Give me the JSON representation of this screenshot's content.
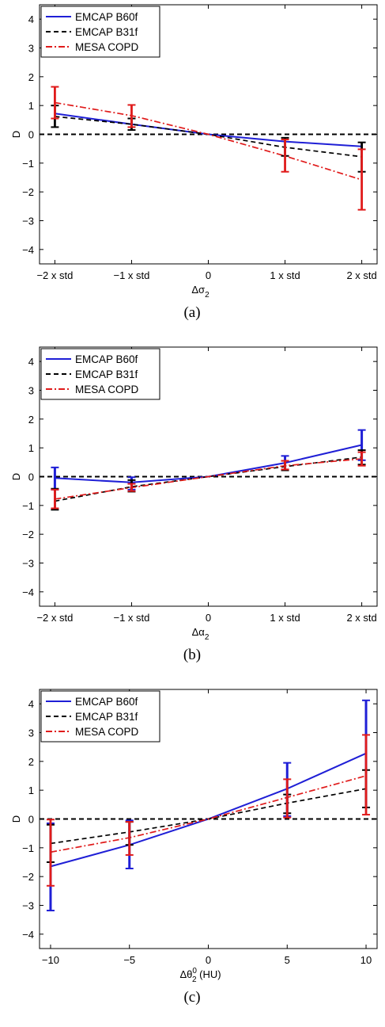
{
  "colors": {
    "b60f": "#1f1fd6",
    "b31f": "#000000",
    "mesa": "#e01b1b"
  },
  "chart_data": [
    {
      "type": "line",
      "caption": "(a)",
      "xlabel": "Δσ",
      "xlabel_sub": "2",
      "xlabel_sup": "",
      "xlabel_suffix": "",
      "ylabel": "D",
      "ylim": [
        -4.5,
        4.5
      ],
      "yticks": [
        -4,
        -3,
        -2,
        -1,
        0,
        1,
        2,
        3,
        4
      ],
      "x": [
        -2,
        -1,
        0,
        1,
        2
      ],
      "xlim": [
        -2.2,
        2.2
      ],
      "xticks": [
        -2,
        -1,
        0,
        1,
        2
      ],
      "xticklabels": [
        "−2 x std",
        "−1 x std",
        "0",
        "1 x std",
        "2 x std"
      ],
      "legend": "top-left",
      "series": [
        {
          "name": "EMCAP B60f",
          "style": "solid",
          "color": "#1f1fd6",
          "values": [
            0.72,
            0.35,
            0,
            -0.25,
            -0.42
          ],
          "errors": [
            null,
            null,
            null,
            null,
            null
          ]
        },
        {
          "name": "EMCAP B31f",
          "style": "dashed",
          "color": "#000000",
          "values": [
            0.62,
            0.35,
            0,
            -0.45,
            -0.78
          ],
          "errors": [
            [
              0.25,
              1.0
            ],
            [
              0.15,
              0.55
            ],
            null,
            [
              -0.75,
              -0.12
            ],
            [
              -1.3,
              -0.28
            ]
          ]
        },
        {
          "name": "MESA COPD",
          "style": "dashdot",
          "color": "#e01b1b",
          "values": [
            1.1,
            0.65,
            0,
            -0.75,
            -1.58
          ],
          "errors": [
            [
              0.55,
              1.65
            ],
            [
              0.25,
              1.02
            ],
            null,
            [
              -1.3,
              -0.18
            ],
            [
              -2.62,
              -0.52
            ]
          ]
        }
      ]
    },
    {
      "type": "line",
      "caption": "(b)",
      "xlabel": "Δα",
      "xlabel_sub": "2",
      "xlabel_sup": "",
      "xlabel_suffix": "",
      "ylabel": "D",
      "ylim": [
        -4.5,
        4.5
      ],
      "yticks": [
        -4,
        -3,
        -2,
        -1,
        0,
        1,
        2,
        3,
        4
      ],
      "x": [
        -2,
        -1,
        0,
        1,
        2
      ],
      "xlim": [
        -2.2,
        2.2
      ],
      "xticks": [
        -2,
        -1,
        0,
        1,
        2
      ],
      "xticklabels": [
        "−2 x std",
        "−1 x std",
        "0",
        "1 x std",
        "2 x std"
      ],
      "legend": "top-left",
      "series": [
        {
          "name": "EMCAP B60f",
          "style": "solid",
          "color": "#1f1fd6",
          "values": [
            -0.05,
            -0.2,
            0,
            0.48,
            1.1
          ],
          "errors": [
            [
              -0.45,
              0.32
            ],
            [
              -0.45,
              -0.02
            ],
            null,
            [
              0.25,
              0.72
            ],
            [
              0.57,
              1.62
            ]
          ]
        },
        {
          "name": "EMCAP B31f",
          "style": "dashed",
          "color": "#000000",
          "values": [
            -0.85,
            -0.35,
            0,
            0.35,
            0.68
          ],
          "errors": [
            [
              -1.15,
              -0.42
            ],
            [
              -0.52,
              -0.12
            ],
            null,
            [
              0.22,
              0.55
            ],
            [
              0.42,
              0.92
            ]
          ]
        },
        {
          "name": "MESA COPD",
          "style": "dashdot",
          "color": "#e01b1b",
          "values": [
            -0.78,
            -0.38,
            0,
            0.38,
            0.62
          ],
          "errors": [
            [
              -1.1,
              -0.45
            ],
            [
              -0.5,
              -0.25
            ],
            null,
            [
              0.25,
              0.55
            ],
            [
              0.38,
              0.85
            ]
          ]
        }
      ]
    },
    {
      "type": "line",
      "caption": "(c)",
      "xlabel": "Δθ",
      "xlabel_sub": "2",
      "xlabel_sup": "0",
      "xlabel_suffix": " (HU)",
      "ylabel": "D",
      "ylim": [
        -4.5,
        4.5
      ],
      "yticks": [
        -4,
        -3,
        -2,
        -1,
        0,
        1,
        2,
        3,
        4
      ],
      "x": [
        -10,
        -5,
        0,
        5,
        10
      ],
      "xlim": [
        -10.7,
        10.7
      ],
      "xticks": [
        -10,
        -5,
        0,
        5,
        10
      ],
      "xticklabels": [
        "−10",
        "−5",
        "0",
        "5",
        "10"
      ],
      "legend": "top-left",
      "series": [
        {
          "name": "EMCAP B60f",
          "style": "solid",
          "color": "#1f1fd6",
          "values": [
            -1.65,
            -0.9,
            0,
            1.05,
            2.28
          ],
          "errors": [
            [
              -3.18,
              -0.15
            ],
            [
              -1.72,
              -0.05
            ],
            null,
            [
              0.1,
              1.95
            ],
            [
              0.4,
              4.12
            ]
          ]
        },
        {
          "name": "EMCAP B31f",
          "style": "dashed",
          "color": "#000000",
          "values": [
            -0.85,
            -0.45,
            0,
            0.55,
            1.05
          ],
          "errors": [
            [
              -1.5,
              -0.2
            ],
            [
              -0.9,
              -0.1
            ],
            null,
            [
              0.2,
              0.85
            ],
            [
              0.4,
              1.7
            ]
          ]
        },
        {
          "name": "MESA COPD",
          "style": "dashdot",
          "color": "#e01b1b",
          "values": [
            -1.15,
            -0.65,
            0,
            0.75,
            1.5
          ],
          "errors": [
            [
              -2.32,
              -0.02
            ],
            [
              -1.25,
              -0.1
            ],
            null,
            [
              0.05,
              1.38
            ],
            [
              0.15,
              2.92
            ]
          ]
        }
      ]
    }
  ]
}
